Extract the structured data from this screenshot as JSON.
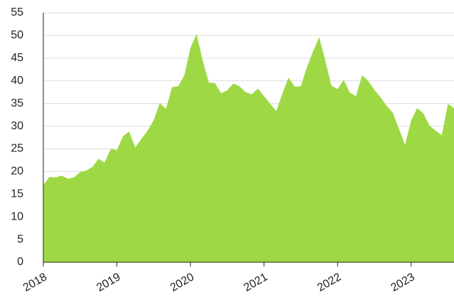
{
  "chart_data": {
    "type": "area",
    "color": "#9ed945",
    "x": [
      2018,
      2018.083,
      2018.167,
      2018.25,
      2018.333,
      2018.417,
      2018.5,
      2018.583,
      2018.667,
      2018.75,
      2018.833,
      2018.917,
      2019,
      2019.083,
      2019.167,
      2019.25,
      2019.333,
      2019.417,
      2019.5,
      2019.583,
      2019.667,
      2019.75,
      2019.833,
      2019.917,
      2020,
      2020.083,
      2020.167,
      2020.25,
      2020.333,
      2020.417,
      2020.5,
      2020.583,
      2020.667,
      2020.75,
      2020.833,
      2020.917,
      2021,
      2021.083,
      2021.167,
      2021.25,
      2021.333,
      2021.417,
      2021.5,
      2021.583,
      2021.667,
      2021.75,
      2021.833,
      2021.917,
      2022,
      2022.083,
      2022.167,
      2022.25,
      2022.333,
      2022.417,
      2022.5,
      2022.583,
      2022.667,
      2022.75,
      2022.833,
      2022.917,
      2023,
      2023.083,
      2023.167,
      2023.25,
      2023.333,
      2023.417,
      2023.5,
      2023.583
    ],
    "values": [
      17,
      18.8,
      18.7,
      19.1,
      18.4,
      18.7,
      19.9,
      20.2,
      21,
      22.8,
      22,
      25,
      24.7,
      27.8,
      28.8,
      25.3,
      27.2,
      29,
      31.3,
      35.1,
      33.8,
      38.6,
      38.8,
      41.2,
      47.3,
      50.3,
      44.5,
      39.6,
      39.5,
      37.3,
      37.9,
      39.4,
      38.8,
      37.5,
      37,
      38.3,
      36.6,
      35,
      33.3,
      37.2,
      40.7,
      38.7,
      38.8,
      43,
      46.5,
      49.6,
      44.5,
      38.9,
      38.2,
      40.2,
      37.4,
      36.6,
      41.2,
      40,
      38,
      36.4,
      34.5,
      33,
      29.5,
      25.9,
      31.2,
      34,
      32.8,
      30.1,
      29,
      28,
      34.9,
      34
    ],
    "xlim": [
      2018,
      2023.583
    ],
    "xticks": [
      2018,
      2019,
      2020,
      2021,
      2022,
      2023
    ],
    "ylim": [
      0,
      55
    ],
    "yticks": [
      0,
      5,
      10,
      15,
      20,
      25,
      30,
      35,
      40,
      45,
      50,
      55
    ],
    "grid": true
  }
}
